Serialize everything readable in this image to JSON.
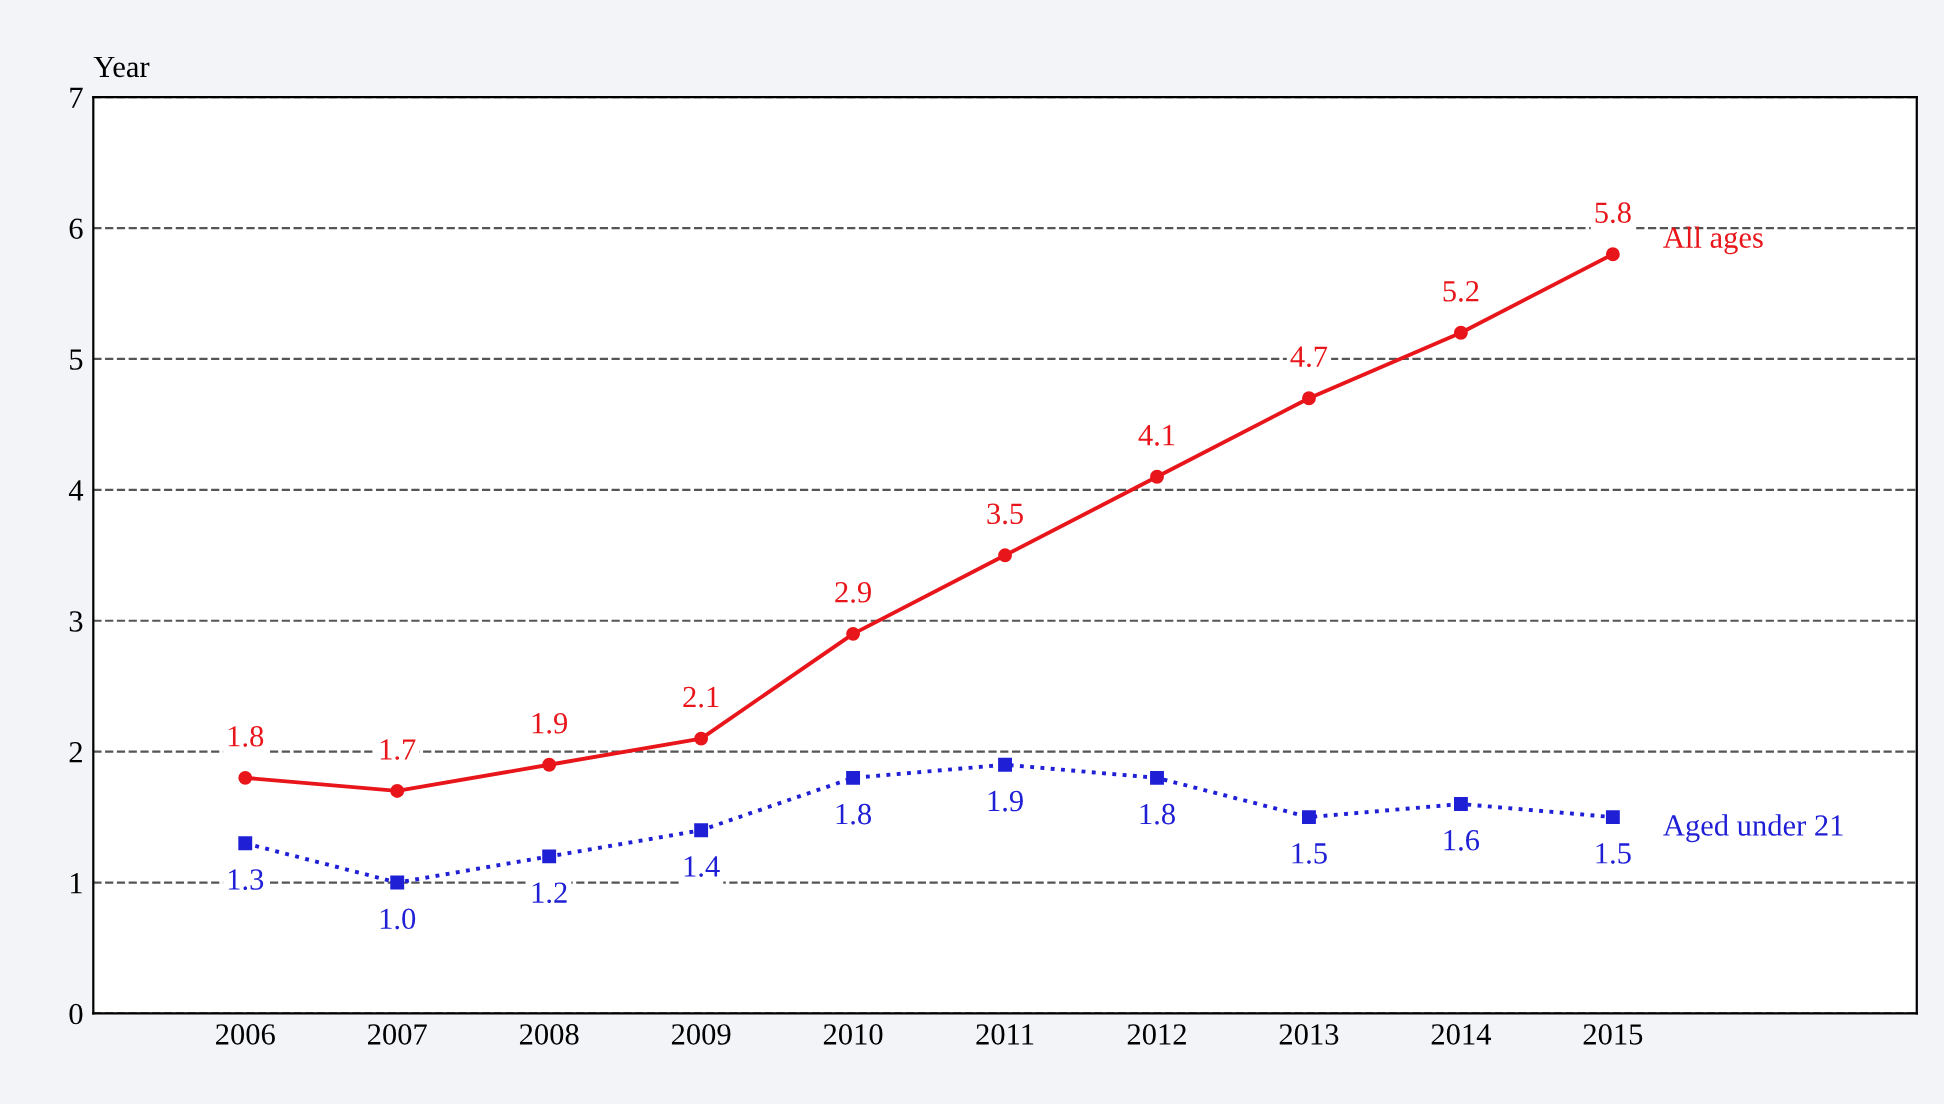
{
  "chart_data": {
    "type": "line",
    "ylabel": "Year",
    "x": [
      2006,
      2007,
      2008,
      2009,
      2010,
      2011,
      2012,
      2013,
      2014,
      2015
    ],
    "xlim": [
      2005,
      2017
    ],
    "xticks": [
      2006,
      2007,
      2008,
      2009,
      2010,
      2011,
      2012,
      2013,
      2014,
      2015
    ],
    "ylim": [
      0,
      7
    ],
    "yticks": [
      0,
      1,
      2,
      3,
      4,
      5,
      6,
      7
    ],
    "grid": "y",
    "legend": false,
    "series": [
      {
        "name": "All ages",
        "color": "#e8161b",
        "marker": "circle",
        "line_style": "solid",
        "values": [
          1.8,
          1.7,
          1.9,
          2.1,
          2.9,
          3.5,
          4.1,
          4.7,
          5.2,
          5.8
        ],
        "value_labels": [
          "1.8",
          "1.7",
          "1.9",
          "2.1",
          "2.9",
          "3.5",
          "4.1",
          "4.7",
          "5.2",
          "5.8"
        ]
      },
      {
        "name": "Aged under 21",
        "color": "#1f1fd6",
        "marker": "square",
        "line_style": "dotted",
        "values": [
          1.3,
          1.0,
          1.2,
          1.4,
          1.8,
          1.9,
          1.8,
          1.5,
          1.6,
          1.5
        ],
        "value_labels": [
          "1.3",
          "1.0",
          "1.2",
          "1.4",
          "1.8",
          "1.9",
          "1.8",
          "1.5",
          "1.6",
          "1.5"
        ]
      }
    ]
  }
}
